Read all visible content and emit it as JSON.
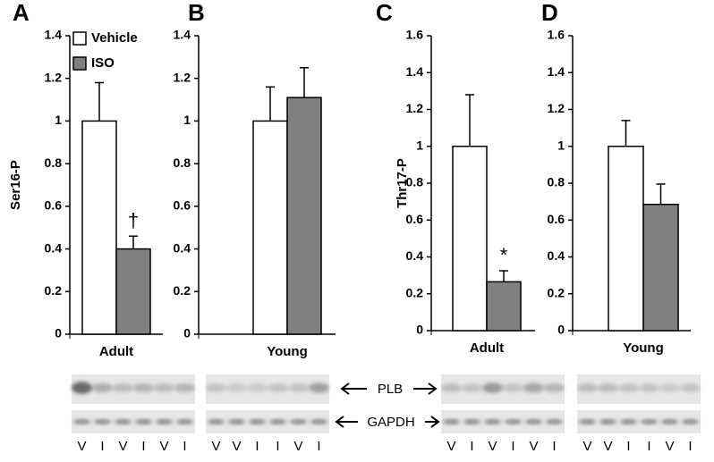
{
  "chart_data": [
    {
      "type": "bar",
      "title": "A",
      "ylabel": "Ser16-P",
      "categories": [
        "Adult"
      ],
      "ylim": [
        0,
        1.4
      ],
      "yticks": [
        0,
        0.2,
        0.4,
        0.6,
        0.8,
        1,
        1.2,
        1.4
      ],
      "legend": "upper left",
      "series": [
        {
          "name": "Vehicle",
          "color": "#ffffff",
          "values": [
            1
          ],
          "errors": [
            0.18
          ]
        },
        {
          "name": "ISO",
          "color": "#808080",
          "values": [
            0.4
          ],
          "errors": [
            0.06
          ],
          "annotations": [
            "†"
          ]
        }
      ]
    },
    {
      "type": "bar",
      "title": "B",
      "categories": [
        "Young"
      ],
      "ylim": [
        0,
        1.4
      ],
      "yticks": [
        0,
        0.2,
        0.4,
        0.6,
        0.8,
        1,
        1.2,
        1.4
      ],
      "series": [
        {
          "color": "#ffffff",
          "values": [
            1
          ],
          "errors": [
            0.16
          ]
        },
        {
          "color": "#808080",
          "values": [
            1.11
          ],
          "errors": [
            0.14
          ]
        }
      ]
    },
    {
      "type": "bar",
      "title": "C",
      "ylabel": "Thr17-P",
      "categories": [
        "Adult"
      ],
      "ylim": [
        0,
        1.6
      ],
      "yticks": [
        0,
        0.2,
        0.4,
        0.6,
        0.8,
        1,
        1.2,
        1.4,
        1.6
      ],
      "series": [
        {
          "color": "#ffffff",
          "values": [
            1
          ],
          "errors": [
            0.28
          ]
        },
        {
          "color": "#808080",
          "values": [
            0.265
          ],
          "errors": [
            0.06
          ],
          "annotations": [
            "*"
          ]
        }
      ]
    },
    {
      "type": "bar",
      "title": "D",
      "categories": [
        "Young"
      ],
      "ylim": [
        0,
        1.6
      ],
      "yticks": [
        0,
        0.2,
        0.4,
        0.6,
        0.8,
        1,
        1.2,
        1.4,
        1.6
      ],
      "series": [
        {
          "color": "#ffffff",
          "values": [
            1
          ],
          "errors": [
            0.14
          ]
        },
        {
          "color": "#808080",
          "values": [
            0.685
          ],
          "errors": [
            0.11
          ]
        }
      ]
    }
  ],
  "blots": {
    "labels": [
      "PLB",
      "GAPDH"
    ],
    "lanes": [
      [
        "V",
        "I",
        "V",
        "I",
        "V",
        "I"
      ],
      [
        "V",
        "V",
        "I",
        "I",
        "V",
        "I"
      ],
      [
        "V",
        "I",
        "V",
        "I",
        "V",
        "I"
      ],
      [
        "V",
        "V",
        "I",
        "I",
        "V",
        "I"
      ]
    ]
  }
}
